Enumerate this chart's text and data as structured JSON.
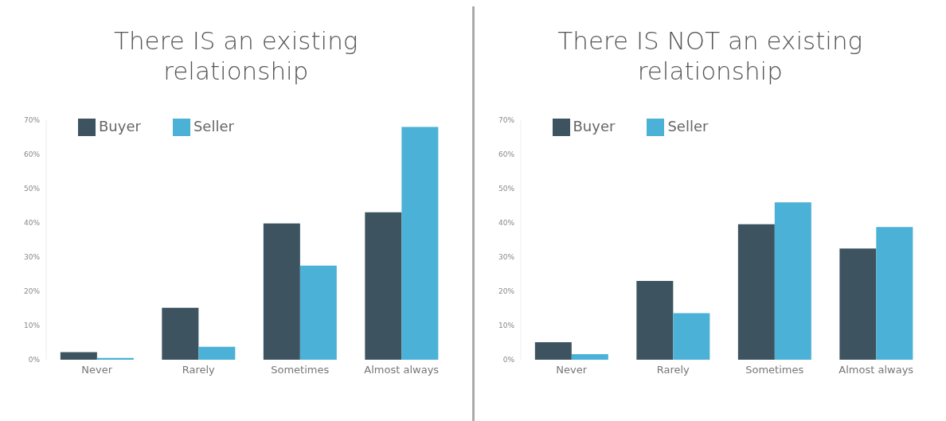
{
  "chart_data": [
    {
      "type": "bar",
      "title": "There IS an existing relationship",
      "categories": [
        "Never",
        "Rarely",
        "Sometimes",
        "Almost always"
      ],
      "series": [
        {
          "name": "Buyer",
          "color": "#3d5360",
          "values": [
            2.2,
            15.2,
            39.8,
            43.1
          ]
        },
        {
          "name": "Seller",
          "color": "#4bb1d6",
          "values": [
            0.5,
            3.8,
            27.5,
            68
          ]
        }
      ],
      "ylim": [
        0,
        70
      ],
      "yticks": [
        {
          "value": 0,
          "label": "0%"
        },
        {
          "value": 10,
          "label": "10%"
        },
        {
          "value": 20,
          "label": "20%"
        },
        {
          "value": 30,
          "label": "30%"
        },
        {
          "value": 40,
          "label": "40%"
        },
        {
          "value": 50,
          "label": "50%"
        },
        {
          "value": 60,
          "label": "60%"
        },
        {
          "value": 70,
          "label": "70%"
        }
      ],
      "grid": false,
      "legend": "top left"
    },
    {
      "type": "bar",
      "title": "There IS NOT an existing relationship",
      "categories": [
        "Never",
        "Rarely",
        "Sometimes",
        "Almost always"
      ],
      "series": [
        {
          "name": "Buyer",
          "color": "#3d5360",
          "values": [
            5.1,
            23,
            39.6,
            32.5
          ]
        },
        {
          "name": "Seller",
          "color": "#4bb1d6",
          "values": [
            1.6,
            13.6,
            46,
            38.8
          ]
        }
      ],
      "ylim": [
        0,
        70
      ],
      "yticks": [
        {
          "value": 0,
          "label": "0%"
        },
        {
          "value": 10,
          "label": "10%"
        },
        {
          "value": 20,
          "label": "20%"
        },
        {
          "value": 30,
          "label": "30%"
        },
        {
          "value": 40,
          "label": "40%"
        },
        {
          "value": 50,
          "label": "50%"
        },
        {
          "value": 60,
          "label": "60%"
        },
        {
          "value": 70,
          "label": "70%"
        }
      ],
      "grid": false,
      "legend": "top left"
    }
  ]
}
